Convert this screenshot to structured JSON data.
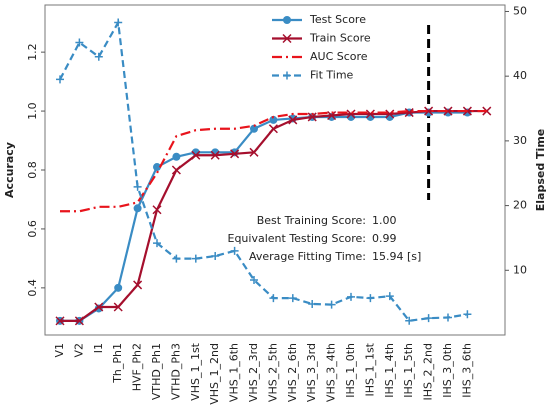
{
  "chart_data": {
    "type": "line",
    "categories": [
      "V1",
      "V2",
      "I1",
      "Th_Ph1",
      "HVF_Ph2",
      "VTHD_Ph1",
      "VTHD_Ph3",
      "VHS_1_1st",
      "VHS_1_2nd",
      "VHS_1_6th",
      "VHS_2_3rd",
      "VHS_2_5th",
      "VHS_2_6th",
      "VHS_3_3rd",
      "VHS_3_4th",
      "IHS_1_0th",
      "IHS_1_1st",
      "IHS_1_4th",
      "IHS_1_5th",
      "IHS_2_2nd",
      "IHS_3_0th",
      "IHS_3_6th",
      null
    ],
    "ylabel": "Accuracy",
    "y2label": "Elapsed Time",
    "ylim": [
      0.24,
      1.36
    ],
    "yticks": [
      0.4,
      0.6,
      0.8,
      {
        "value": 1,
        "label": "1.0"
      },
      1.2
    ],
    "y2lim": [
      0,
      51
    ],
    "y2ticks": [
      10,
      20,
      30,
      40,
      50
    ],
    "legend": "upper center",
    "series": [
      {
        "name": "Test Score",
        "color": "#3a8cc4",
        "style": "solid-dot",
        "values": [
          0.288,
          0.288,
          0.33,
          0.4,
          0.67,
          0.81,
          0.845,
          0.86,
          0.86,
          0.86,
          0.94,
          0.97,
          0.975,
          0.98,
          0.98,
          0.98,
          0.98,
          0.98,
          0.995,
          0.995,
          0.995,
          0.995,
          null
        ]
      },
      {
        "name": "Train Score",
        "color": "#a50f2d",
        "style": "solid-x",
        "values": [
          0.288,
          0.288,
          0.335,
          0.335,
          0.41,
          0.665,
          0.8,
          0.85,
          0.85,
          0.855,
          0.86,
          0.94,
          0.97,
          0.98,
          0.985,
          0.99,
          0.99,
          0.99,
          0.995,
          1.0,
          1.0,
          1.0,
          1.0
        ]
      },
      {
        "name": "AUC Score",
        "color": "#e8141c",
        "style": "dashdot",
        "values": [
          0.66,
          0.66,
          0.675,
          0.675,
          0.69,
          0.79,
          0.915,
          0.935,
          0.94,
          0.94,
          0.95,
          0.98,
          0.99,
          0.99,
          0.995,
          0.995,
          0.995,
          0.995,
          1.0,
          1.0,
          1.0,
          1.0,
          1.0
        ]
      },
      {
        "name": "Fit Time",
        "color": "#3a8cc4",
        "style": "dash-plus",
        "axis": "y2",
        "values": [
          39.5,
          45.2,
          43,
          48.3,
          22.9,
          14.2,
          11.8,
          11.8,
          12.2,
          13.0,
          8.5,
          5.7,
          5.7,
          4.8,
          4.7,
          5.9,
          5.7,
          6.0,
          2.2,
          2.6,
          2.7,
          3.2,
          null
        ]
      }
    ],
    "marker_line": {
      "category": "IHS_2_2nd"
    },
    "annotations": [
      {
        "label": "Best Training Score:",
        "value": "1.00"
      },
      {
        "label": "Equivalent Testing Score:",
        "value": "0.99"
      },
      {
        "label": "Average Fitting Time:",
        "value": "15.94 [s]"
      }
    ]
  }
}
